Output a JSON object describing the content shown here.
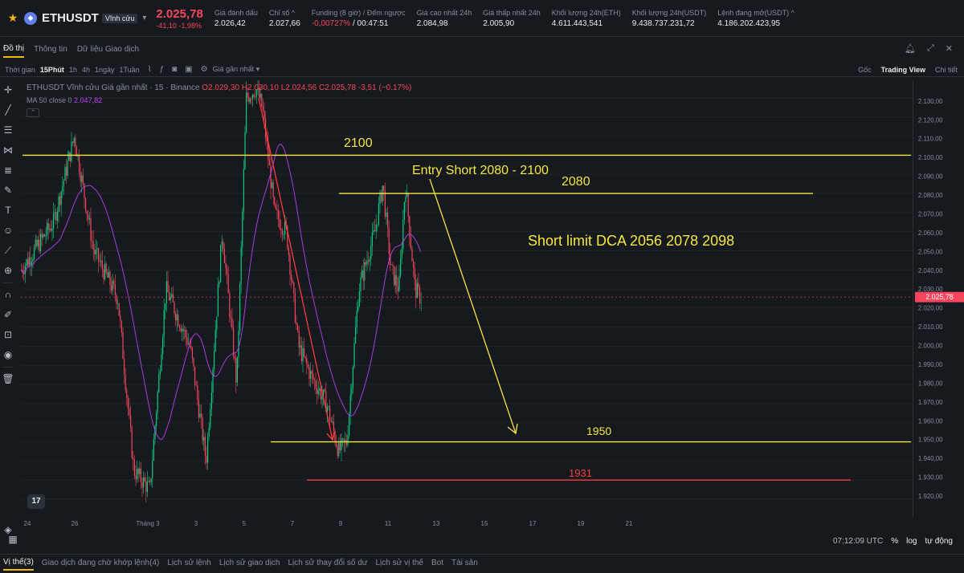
{
  "ticker": {
    "symbol": "ETHUSDT",
    "perpetual_badge": "Vĩnh cửu",
    "last_price": "2.025,78",
    "change": "-41,10 -1,98%",
    "stats": [
      {
        "label": "Giá đánh dấu",
        "value": "2.026,42"
      },
      {
        "label": "Chỉ số ^",
        "value": "2.027,66"
      },
      {
        "label": "Funding (8 giờ) / Đếm ngược",
        "value_neg": "-0,00727%",
        "value": " / 00:47:51"
      },
      {
        "label": "Giá cao nhất 24h",
        "value": "2.084,98"
      },
      {
        "label": "Giá thấp nhất 24h",
        "value": "2.005,90"
      },
      {
        "label": "Khối lượng 24h(ETH)",
        "value": "4.611.443,541"
      },
      {
        "label": "Khối lượng 24h(USDT)",
        "value": "9.438.737.231,72"
      },
      {
        "label": "Lệnh đang mở(USDT) ^",
        "value": "4.186.202.423,95"
      }
    ]
  },
  "tabs": [
    "Đồ thị",
    "Thông tin",
    "Dữ liệu Giao dịch"
  ],
  "toolbar": {
    "time_label": "Thời gian",
    "intervals": [
      "15Phút",
      "1h",
      "4h",
      "1ngày",
      "1Tuần"
    ],
    "active_interval": "15Phút",
    "price_type": "Giá gần nhất ▾",
    "right": [
      "Gốc",
      "Trading View",
      "Chi tiết"
    ],
    "active_view": "Trading View"
  },
  "chart": {
    "legend_title": "ETHUSDT Vĩnh cửu Giá gần nhất · 15 · Binance",
    "legend_ohlc": "O2.029,30 H2.030,10 L2.024,56 C2.025,78 -3,51 (−0.17%)",
    "ma_label": "MA 50 close 0",
    "ma_value": "2.047,82",
    "current_price_tag": "2.025,78",
    "price_ticks": [
      "2.130,00",
      "2.120,00",
      "2.110,00",
      "2.100,00",
      "2.090,00",
      "2.080,00",
      "2.070,00",
      "2.060,00",
      "2.050,00",
      "2.040,00",
      "2.030,00",
      "2.020,00",
      "2.010,00",
      "2.000,00",
      "1.990,00",
      "1.980,00",
      "1.970,00",
      "1.960,00",
      "1.950,00",
      "1.940,00",
      "1.930,00",
      "1.920,00"
    ],
    "time_ticks": [
      "24",
      "26",
      "Tháng 3",
      "3",
      "5",
      "7",
      "9",
      "11",
      "13",
      "15",
      "17",
      "19",
      "21"
    ],
    "annotations": {
      "level_2100": "2100",
      "entry": "Entry Short 2080 - 2100",
      "level_2080": "2080",
      "dca": "Short limit DCA 2056 2078 2098",
      "level_1950": "1950",
      "level_1931": "1931"
    },
    "colors": {
      "up": "#0ecb81",
      "down": "#f6465d",
      "ma": "#c042ff",
      "yellow_line": "#f5e642",
      "red_line": "#ff3b3b"
    }
  },
  "status": {
    "clock": "07:12:09 UTC",
    "percent": "%",
    "log": "log",
    "auto": "tự động"
  },
  "bottom_tabs": [
    "Vị thế(3)",
    "Giao dịch đang chờ khớp lệnh(4)",
    "Lịch sử lệnh",
    "Lịch sử giao dịch",
    "Lịch sử thay đổi số dư",
    "Lịch sử vị thế",
    "Bot",
    "Tài sản"
  ]
}
